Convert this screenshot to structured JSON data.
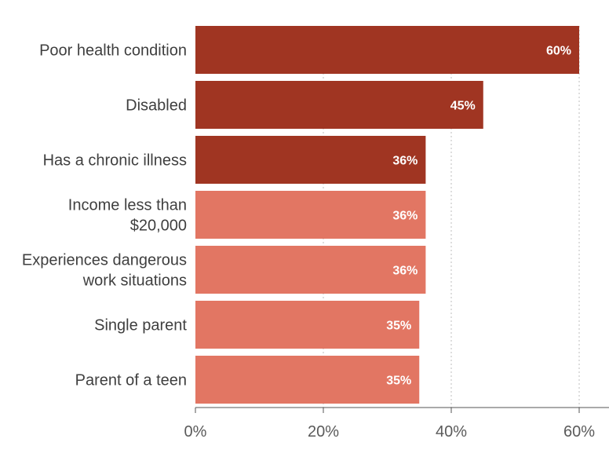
{
  "chart_data": {
    "type": "bar",
    "orientation": "horizontal",
    "categories": [
      [
        "Poor health condition"
      ],
      [
        "Disabled"
      ],
      [
        "Has a chronic illness"
      ],
      [
        "Income less than",
        "$20,000"
      ],
      [
        "Experiences dangerous",
        "work situations"
      ],
      [
        "Single parent"
      ],
      [
        "Parent of a teen"
      ]
    ],
    "values": [
      60,
      45,
      36,
      36,
      36,
      35,
      35
    ],
    "value_labels": [
      "60%",
      "45%",
      "36%",
      "36%",
      "36%",
      "35%",
      "35%"
    ],
    "x_ticks": [
      0,
      20,
      40,
      60
    ],
    "x_tick_labels": [
      "0%",
      "20%",
      "40%",
      "60%"
    ],
    "xlim": [
      0,
      64
    ],
    "grid": "vertical dotted",
    "colors": [
      "#a03522",
      "#a03522",
      "#a03522",
      "#e27663",
      "#e27663",
      "#e27663",
      "#e27663"
    ],
    "grid_color": "#c8c8c8",
    "axis_color": "#555555"
  }
}
